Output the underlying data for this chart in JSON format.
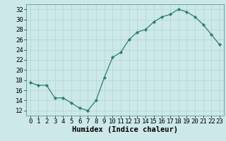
{
  "x": [
    0,
    1,
    2,
    3,
    4,
    5,
    6,
    7,
    8,
    9,
    10,
    11,
    12,
    13,
    14,
    15,
    16,
    17,
    18,
    19,
    20,
    21,
    22,
    23
  ],
  "y": [
    17.5,
    17.0,
    17.0,
    14.5,
    14.5,
    13.5,
    12.5,
    12.0,
    14.0,
    18.5,
    22.5,
    23.5,
    26.0,
    27.5,
    28.0,
    29.5,
    30.5,
    31.0,
    32.0,
    31.5,
    30.5,
    29.0,
    27.0,
    25.0
  ],
  "xlabel": "Humidex (Indice chaleur)",
  "xlim": [
    -0.5,
    23.5
  ],
  "ylim": [
    11,
    33
  ],
  "yticks": [
    12,
    14,
    16,
    18,
    20,
    22,
    24,
    26,
    28,
    30,
    32
  ],
  "xticks": [
    0,
    1,
    2,
    3,
    4,
    5,
    6,
    7,
    8,
    9,
    10,
    11,
    12,
    13,
    14,
    15,
    16,
    17,
    18,
    19,
    20,
    21,
    22,
    23
  ],
  "line_color": "#2e7d6e",
  "marker_color": "#2e7d6e",
  "bg_color": "#cce8e8",
  "grid_color": "#aacfcf",
  "xlabel_fontsize": 7.5,
  "tick_fontsize": 6.5
}
